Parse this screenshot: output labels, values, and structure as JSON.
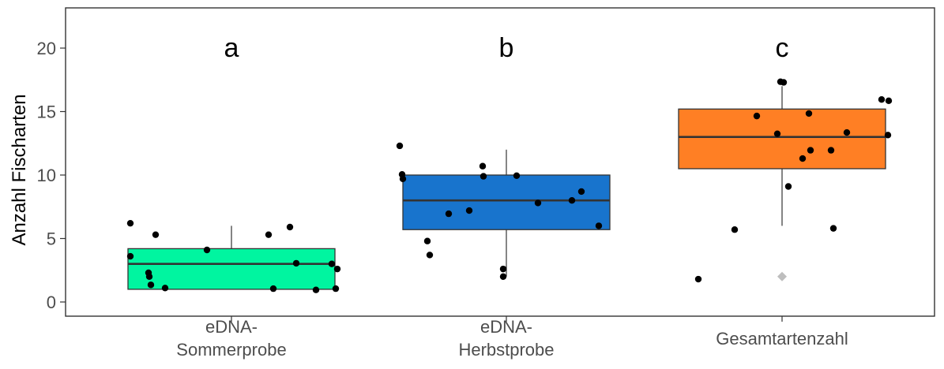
{
  "chart_data": {
    "type": "boxplot",
    "title": "",
    "xlabel": "",
    "ylabel": "Anzahl Fischarten",
    "ylim": [
      -1.2,
      23
    ],
    "yticks": [
      "0",
      "5",
      "10",
      "15",
      "20"
    ],
    "grid": false,
    "legend": "none",
    "categories": [
      {
        "label_lines": [
          "eDNA-",
          "Sommerprobe"
        ],
        "letter": "a",
        "color": "#00F5A0",
        "box": {
          "whisker_low": 1.0,
          "q1": 1.0,
          "median": 3.0,
          "q3": 4.2,
          "whisker_high": 6.0
        },
        "outliers": [],
        "points": [
          6.2,
          3.6,
          5.3,
          2.3,
          2.0,
          1.35,
          1.1,
          4.1,
          5.3,
          5.9,
          3.05,
          1.05,
          0.95,
          3.0,
          2.6,
          1.05
        ]
      },
      {
        "label_lines": [
          "eDNA-",
          "Herbstprobe"
        ],
        "letter": "b",
        "color": "#1874CD",
        "box": {
          "whisker_low": 2.0,
          "q1": 5.7,
          "median": 8.0,
          "q3": 10.0,
          "whisker_high": 12.0
        },
        "outliers": [],
        "points": [
          12.3,
          10.05,
          9.7,
          4.8,
          6.95,
          3.7,
          7.2,
          10.7,
          9.9,
          2.6,
          2.0,
          9.95,
          7.8,
          8.0,
          8.7,
          6.0
        ]
      },
      {
        "label_lines": [
          "Gesamtartenzahl"
        ],
        "letter": "c",
        "color": "#FF7F24",
        "box": {
          "whisker_low": 6.0,
          "q1": 10.5,
          "median": 13.0,
          "q3": 15.2,
          "whisker_high": 17.0
        },
        "outliers": [
          2.0
        ],
        "points": [
          1.8,
          5.7,
          14.65,
          13.25,
          17.35,
          17.3,
          9.1,
          14.85,
          11.95,
          11.3,
          11.95,
          5.8,
          13.35,
          15.95,
          13.15,
          15.85
        ]
      }
    ],
    "colors": {
      "whisker": "#333333",
      "box_edge": "#333333",
      "point": "#000000",
      "outlier": "#BEBEBE"
    }
  }
}
